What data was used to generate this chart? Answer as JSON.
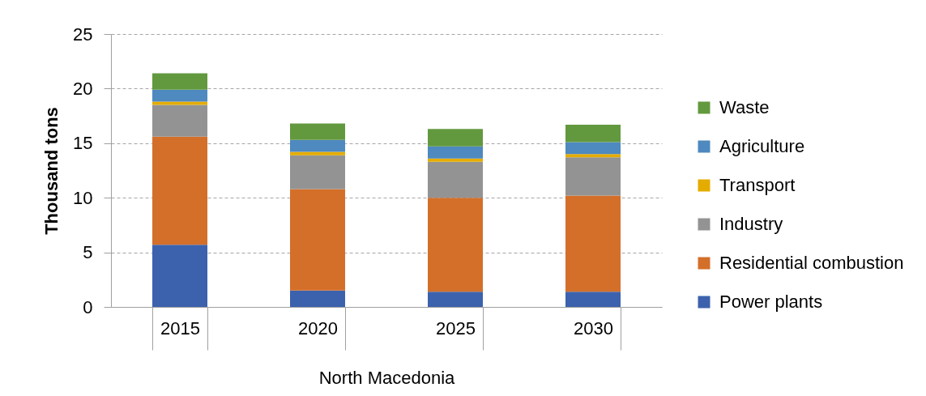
{
  "chart_data": {
    "type": "bar",
    "stacked": true,
    "categories": [
      "2015",
      "2020",
      "2025",
      "2030"
    ],
    "xlabel": "North Macedonia",
    "ylabel": "Thousand tons",
    "ylim": [
      0,
      25
    ],
    "yticks": [
      0,
      5,
      10,
      15,
      20,
      25
    ],
    "grid": "y",
    "legend": "right",
    "series": [
      {
        "name": "Power plants",
        "color": "#3c62ad",
        "values": [
          5.7,
          1.5,
          1.4,
          1.4
        ]
      },
      {
        "name": "Residential combustion",
        "color": "#d46f2a",
        "values": [
          9.9,
          9.3,
          8.6,
          8.8
        ]
      },
      {
        "name": "Industry",
        "color": "#939393",
        "values": [
          2.9,
          3.1,
          3.3,
          3.5
        ]
      },
      {
        "name": "Transport",
        "color": "#e5ac00",
        "values": [
          0.3,
          0.3,
          0.3,
          0.3
        ]
      },
      {
        "name": "Agriculture",
        "color": "#4e89bf",
        "values": [
          1.1,
          1.1,
          1.1,
          1.1
        ]
      },
      {
        "name": "Waste",
        "color": "#63993e",
        "values": [
          1.5,
          1.5,
          1.6,
          1.6
        ]
      }
    ]
  }
}
